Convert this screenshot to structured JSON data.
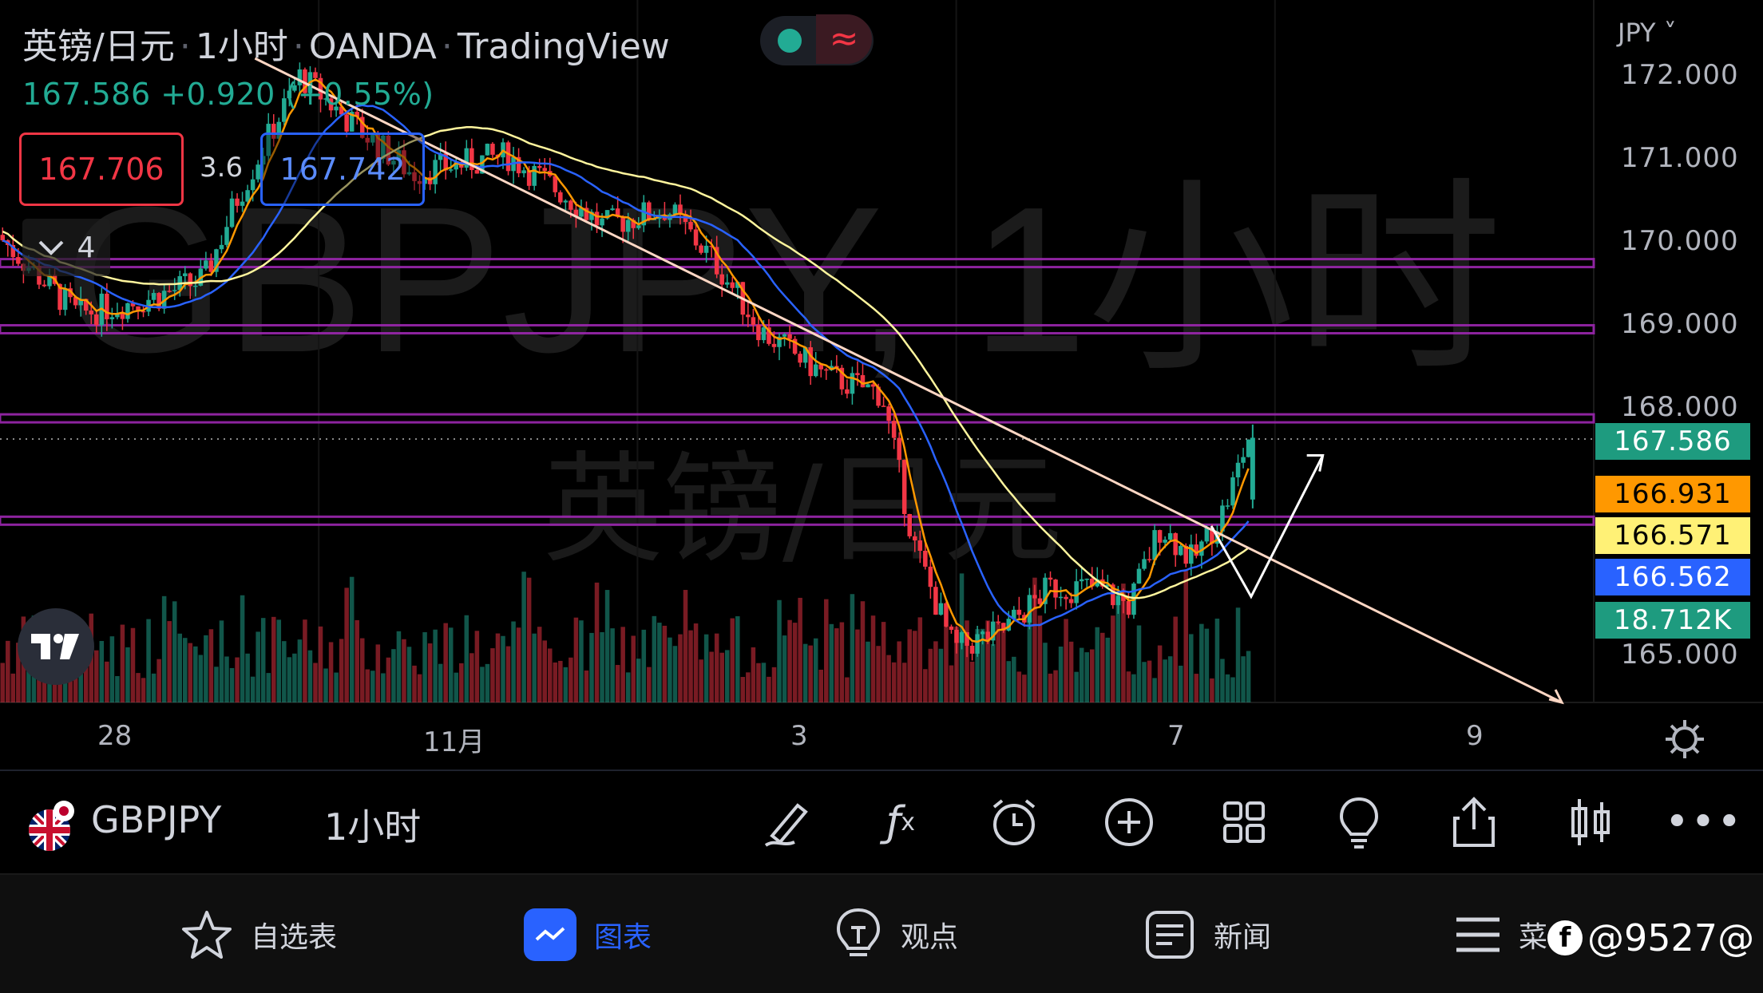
{
  "header": {
    "symbol_name": "英镑/日元",
    "interval": "1小时",
    "broker": "OANDA",
    "platform": "TradingView",
    "price_change": "167.586 +0.920 (+0.55%)",
    "sell_price": "167.706",
    "spread": "3.6",
    "buy_price": "167.742",
    "indicator_count": "4"
  },
  "watermark": {
    "symbol": "GBPJPY, 1小时",
    "name": "英镑/日元"
  },
  "price_axis": {
    "currency": "JPY ˅",
    "ticks": [
      "172.000",
      "171.000",
      "170.000",
      "169.000",
      "168.000",
      "165.000"
    ],
    "tags": [
      {
        "label": "167.586",
        "bg": "#1e9b7f",
        "fg": "#ffffff"
      },
      {
        "label": "166.931",
        "bg": "#ff9800",
        "fg": "#000000"
      },
      {
        "label": "166.571",
        "bg": "#fff176",
        "fg": "#000000"
      },
      {
        "label": "166.562",
        "bg": "#2962ff",
        "fg": "#ffffff"
      },
      {
        "label": "18.712K",
        "bg": "#1e9b7f",
        "fg": "#ffffff"
      }
    ]
  },
  "time_axis": {
    "labels": [
      "28",
      "11月",
      "3",
      "7",
      "9"
    ]
  },
  "toolbar": {
    "symbol": "GBPJPY",
    "interval": "1小时",
    "icons": [
      "draw-icon",
      "indicators-icon",
      "alert-icon",
      "add-icon",
      "layout-icon",
      "ideas-icon",
      "share-icon",
      "chart-type-icon",
      "more-icon"
    ]
  },
  "bottom_nav": [
    {
      "label": "自选表",
      "icon": "star-icon",
      "active": false
    },
    {
      "label": "图表",
      "icon": "chart-icon",
      "active": true
    },
    {
      "label": "观点",
      "icon": "idea-icon",
      "active": false
    },
    {
      "label": "新闻",
      "icon": "news-icon",
      "active": false
    },
    {
      "label": "菜",
      "icon": "menu-icon",
      "active": false
    }
  ],
  "credit": "@9527@",
  "colors": {
    "up": "#22ab94",
    "down": "#f23645",
    "ma_fast": "#ff9800",
    "ma_mid": "#2962ff",
    "ma_slow": "#fff59d",
    "level_line": "#9c27b0",
    "trendline": "#ffd7c4"
  },
  "chart_data": {
    "type": "candlestick",
    "symbol": "GBPJPY",
    "interval": "1小时",
    "ylim": [
      164.6,
      172.2
    ],
    "price_levels": [
      169.58,
      168.83,
      167.82,
      166.66
    ],
    "last_price": 167.586,
    "moving_averages": [
      {
        "color": "orange",
        "last": 166.931
      },
      {
        "color": "yellow",
        "last": 166.571
      },
      {
        "color": "blue",
        "last": 166.562
      }
    ],
    "volume_last": "18.712K",
    "close_path": [
      [
        0,
        169.9
      ],
      [
        0.05,
        169.0
      ],
      [
        0.1,
        169.2
      ],
      [
        0.13,
        169.4
      ],
      [
        0.15,
        170.3
      ],
      [
        0.19,
        171.7
      ],
      [
        0.22,
        171.2
      ],
      [
        0.26,
        170.6
      ],
      [
        0.32,
        170.8
      ],
      [
        0.36,
        170.3
      ],
      [
        0.38,
        170.0
      ],
      [
        0.42,
        170.2
      ],
      [
        0.45,
        169.6
      ],
      [
        0.48,
        168.8
      ],
      [
        0.52,
        168.3
      ],
      [
        0.555,
        168.1
      ],
      [
        0.575,
        166.4
      ],
      [
        0.6,
        165.2
      ],
      [
        0.63,
        165.4
      ],
      [
        0.66,
        165.9
      ],
      [
        0.69,
        165.9
      ],
      [
        0.71,
        165.7
      ],
      [
        0.73,
        166.6
      ],
      [
        0.75,
        166.2
      ],
      [
        0.77,
        166.8
      ],
      [
        0.785,
        167.6
      ]
    ],
    "trendlines": [
      {
        "from": [
          0.16,
          171.9
        ],
        "to": [
          0.98,
          164.6
        ],
        "color": "#ffd7c4"
      },
      {
        "path": [
          [
            0.76,
            166.6
          ],
          [
            0.785,
            165.8
          ],
          [
            0.83,
            167.4
          ]
        ],
        "color": "#ffffff"
      }
    ]
  }
}
